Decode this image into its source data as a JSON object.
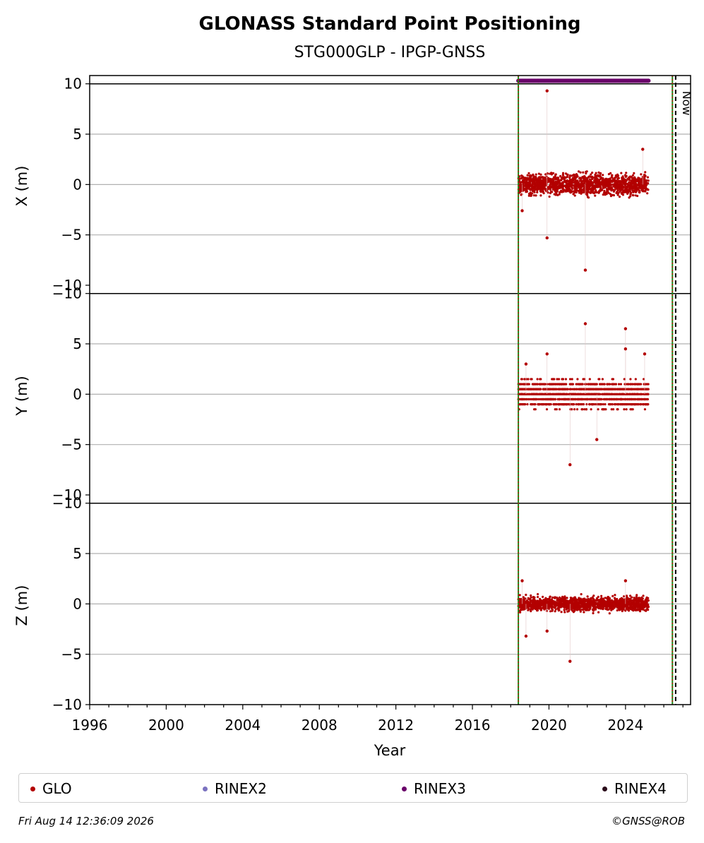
{
  "chart_data": {
    "type": "scatter",
    "title": "GLONASS Standard Point Positioning",
    "subtitle": "STG000GLP - IPGP-GNSS",
    "xlabel": "Year",
    "xlim": [
      1996,
      2027.4
    ],
    "x_ticks": [
      "1996",
      "2000",
      "2004",
      "2008",
      "2012",
      "2016",
      "2020",
      "2024"
    ],
    "panels": [
      {
        "ylabel": "X (m)",
        "ylim": [
          -10,
          10
        ],
        "y_ticks": [
          "10",
          "5",
          "0",
          "−5",
          "−10"
        ]
      },
      {
        "ylabel": "Y (m)",
        "ylim": [
          -10,
          10
        ],
        "y_ticks": [
          "5",
          "0",
          "−5",
          "−10"
        ]
      },
      {
        "ylabel": "Z (m)",
        "ylim": [
          -10,
          10
        ],
        "y_ticks": [
          "5",
          "0",
          "−5",
          "−10"
        ]
      }
    ],
    "series": [
      {
        "name": "GLO",
        "color": "#b30000",
        "x_range": [
          2018.4,
          2025.2
        ],
        "typical_spread": {
          "X": [
            -1.5,
            1.5
          ],
          "Y": [
            -2.0,
            2.0
          ],
          "Z": [
            -1.0,
            1.0
          ]
        },
        "outliers": {
          "X": [
            [
              2019.9,
              9.3
            ],
            [
              2019.9,
              -5.3
            ],
            [
              2021.9,
              -8.5
            ],
            [
              2024.9,
              3.5
            ],
            [
              2018.6,
              -2.6
            ]
          ],
          "Y": [
            [
              2019.9,
              4.0
            ],
            [
              2021.9,
              7.0
            ],
            [
              2024.0,
              6.5
            ],
            [
              2024.0,
              4.5
            ],
            [
              2022.5,
              -4.5
            ],
            [
              2021.1,
              -7.0
            ],
            [
              2025.0,
              4.0
            ],
            [
              2018.8,
              3.0
            ]
          ],
          "Z": [
            [
              2018.8,
              -3.2
            ],
            [
              2019.9,
              -2.7
            ],
            [
              2021.1,
              -5.7
            ],
            [
              2024.0,
              2.3
            ],
            [
              2018.6,
              2.3
            ]
          ]
        }
      },
      {
        "name": "RINEX2",
        "color": "#7b72c0"
      },
      {
        "name": "RINEX3",
        "color": "#6a006a",
        "x_range": [
          2018.4,
          2025.2
        ],
        "y": 10.3
      },
      {
        "name": "RINEX4",
        "color": "#2a0a1a"
      }
    ],
    "vertical_lines": [
      {
        "x": 2018.4,
        "style": "green solid with red dotted"
      },
      {
        "x": 2026.45,
        "style": "green solid with red dotted"
      },
      {
        "x": 2026.62,
        "style": "black dashed",
        "label": "Now"
      }
    ],
    "grid": "horizontal",
    "legend_placement": "bottom"
  },
  "legend": {
    "items": [
      {
        "label": "GLO",
        "color": "#b30000"
      },
      {
        "label": "RINEX2",
        "color": "#7b72c0"
      },
      {
        "label": "RINEX3",
        "color": "#6a006a"
      },
      {
        "label": "RINEX4",
        "color": "#2a0a1a"
      }
    ]
  },
  "footer": {
    "timestamp": "Fri Aug 14 12:36:09 2026",
    "credit": "©GNSS@ROB"
  }
}
